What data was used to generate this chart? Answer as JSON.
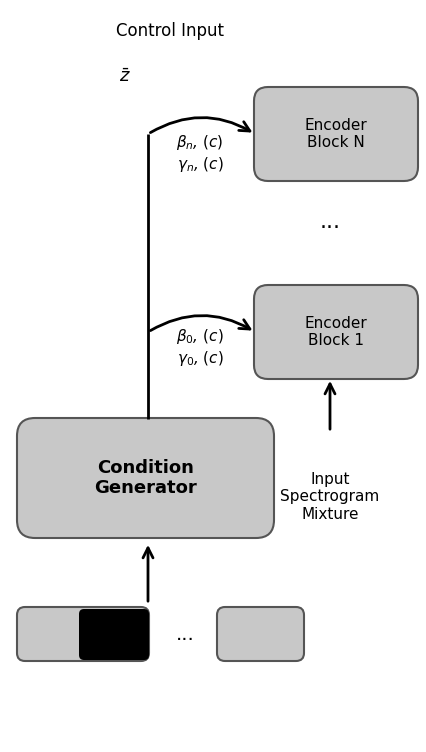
{
  "bg_color": "#ffffff",
  "box_fill": "#c8c8c8",
  "box_edge": "#555555",
  "control_input_label": "Control Input",
  "zbar_label": "$\\bar{z}$",
  "condition_label": "Condition\nGenerator",
  "encoder1_label": "Encoder\nBlock 1",
  "encoderN_label": "Encoder\nBlock N",
  "gamma0_label": "$\\gamma_0$, $(c)$",
  "beta0_label": "$\\beta_0$, $(c)$",
  "gamman_label": "$\\gamma_n$, $(c)$",
  "betan_label": "$\\beta_n$, $(c)$",
  "dots_label": "...",
  "input_spec_label": "Input\nSpectrogram\nMixture",
  "figw": 4.26,
  "figh": 7.52,
  "dpi": 100
}
